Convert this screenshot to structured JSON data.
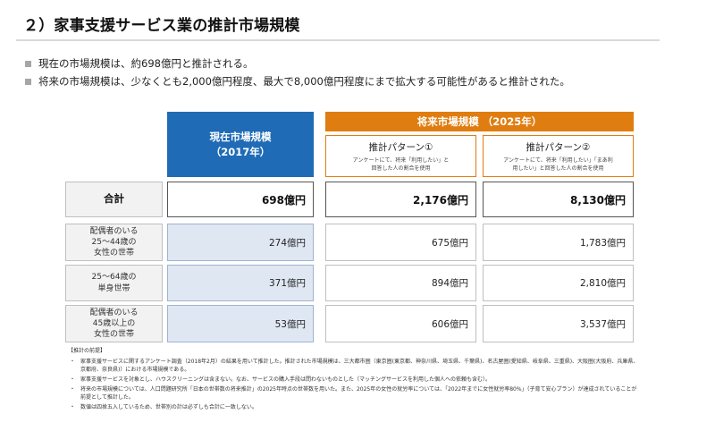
{
  "title": "２）家事支援サービス業の推計市場規模",
  "bullets": [
    "現在の市場規模は、約698億円と推計される。",
    "将来の市場規模は、少なくとも2,000億円程度、最大で8,000億円程度にまで拡大する可能性があると推計された。"
  ],
  "table": {
    "current_header": [
      "現在市場規模",
      "（2017年）"
    ],
    "future_header": "将来市場規模 （2025年）",
    "pattern1": {
      "title": "推計パターン①",
      "desc": [
        "アンケートにて、将来「利用したい」と",
        "回答した人の割合を使用"
      ]
    },
    "pattern2": {
      "title": "推計パターン②",
      "desc": [
        "アンケートにて、将来「利用したい」「まあ利",
        "用したい」と回答した人の割合を使用"
      ]
    },
    "rows": [
      {
        "label": [
          "合計"
        ],
        "current": "698億円",
        "p1": "2,176億円",
        "p2": "8,130億円"
      },
      {
        "label": [
          "配偶者のいる",
          "25～44歳の",
          "女性の世帯"
        ],
        "current": "274億円",
        "p1": "675億円",
        "p2": "1,783億円"
      },
      {
        "label": [
          "25～64歳の",
          "単身世帯"
        ],
        "current": "371億円",
        "p1": "894億円",
        "p2": "2,810億円"
      },
      {
        "label": [
          "配偶者のいる",
          "45歳以上の",
          "女性の世帯"
        ],
        "current": "53億円",
        "p1": "606億円",
        "p2": "3,537億円"
      }
    ]
  },
  "notes": {
    "heading": "【推計の前提】",
    "items": [
      "家事支援サービスに関するアンケート調査（2018年2月）の結果を用いて推計した。推計された市場規模は、三大都市圏（東京圏(東京都、神奈川県、埼玉県、千葉県)、名古屋圏(愛知県、岐阜県、三重県)、大阪圏(大阪府、兵庫県、京都府、奈良県)）における市場規模である。",
      "家事支援サービスを対象とし、ハウスクリーニングは含まない。なお、サービスの購入手段は問わないものとした（マッチングサービスを利用した個人への依頼も含む）。",
      "将来の市場規模については、人口問題研究所「日本の世帯数の将来推計」の2025年時点の世帯数を用いた。また、2025年の女性の就労率については、「2022年までに女性就労率80%」（子育て安心プラン）が達成されていることが前提として推計した。",
      "数値は四捨五入しているため、世帯別の計は必ずしも合計に一致しない。"
    ]
  }
}
